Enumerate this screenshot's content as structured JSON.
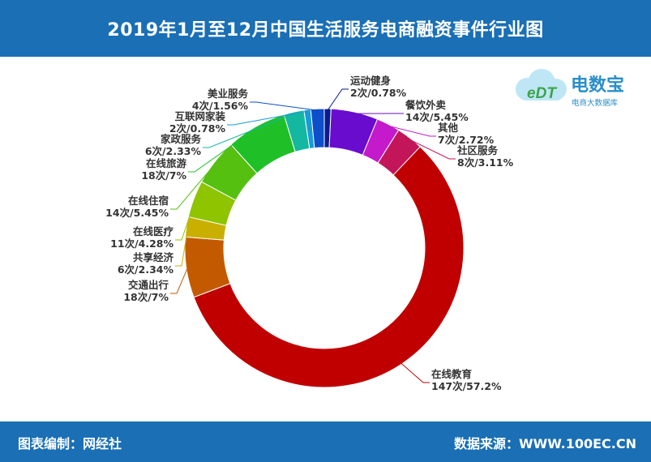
{
  "title": "2019年1月至12月中国生活服务电商融资事件行业图",
  "footer": {
    "left": "图表编制：网经社",
    "right": "数据来源：WWW.100EC.CN"
  },
  "logo": {
    "mark": "eDT",
    "name": "电数宝",
    "tagline": "电商大数据库"
  },
  "chart_data": {
    "type": "donut",
    "title": "",
    "slices": [
      {
        "name": "运动健身",
        "count": 2,
        "percent": 0.78,
        "label": "2次/0.78%",
        "color": "#0a1a8f"
      },
      {
        "name": "餐饮外卖",
        "count": 14,
        "percent": 5.45,
        "label": "14次/5.45%",
        "color": "#6a0cce"
      },
      {
        "name": "其他",
        "count": 7,
        "percent": 2.72,
        "label": "7次/2.72%",
        "color": "#c41acb"
      },
      {
        "name": "社区服务",
        "count": 8,
        "percent": 3.11,
        "label": "8次/3.11%",
        "color": "#c2155a"
      },
      {
        "name": "在线教育",
        "count": 147,
        "percent": 57.2,
        "label": "147次/57.2%",
        "color": "#c00000"
      },
      {
        "name": "交通出行",
        "count": 18,
        "percent": 7,
        "label": "18次/7%",
        "color": "#c35a00"
      },
      {
        "name": "共享经济",
        "count": 6,
        "percent": 2.34,
        "label": "6次/2.34%",
        "color": "#c9b000"
      },
      {
        "name": "在线医疗",
        "count": 11,
        "percent": 4.28,
        "label": "11次/4.28%",
        "color": "#8ec400"
      },
      {
        "name": "在线住宿",
        "count": 14,
        "percent": 5.45,
        "label": "14次/5.45%",
        "color": "#55c010"
      },
      {
        "name": "在线旅游",
        "count": 18,
        "percent": 7,
        "label": "18次/7%",
        "color": "#1fbf28"
      },
      {
        "name": "家政服务",
        "count": 6,
        "percent": 2.33,
        "label": "6次/2.33%",
        "color": "#14b8a0"
      },
      {
        "name": "互联网家装",
        "count": 2,
        "percent": 0.78,
        "label": "2次/0.78%",
        "color": "#189ad6"
      },
      {
        "name": "美业服务",
        "count": 4,
        "percent": 1.56,
        "label": "4次/1.56%",
        "color": "#0d4ec9"
      }
    ]
  }
}
